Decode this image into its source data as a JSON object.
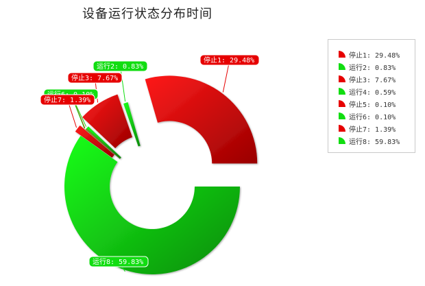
{
  "chart_data": {
    "type": "pie",
    "title": "设备运行状态分布时间",
    "legend_position": "right",
    "slices": [
      {
        "name": "停止1",
        "label": "停止1: 29.48%",
        "value": 29.48,
        "status": "stop"
      },
      {
        "name": "运行2",
        "label": "运行2: 0.83%",
        "value": 0.83,
        "status": "run"
      },
      {
        "name": "停止3",
        "label": "停止3: 7.67%",
        "value": 7.67,
        "status": "stop"
      },
      {
        "name": "运行4",
        "label": "运行4: 0.59%",
        "value": 0.59,
        "status": "run"
      },
      {
        "name": "停止5",
        "label": "停止5: 0.10%",
        "value": 0.1,
        "status": "stop"
      },
      {
        "name": "运行6",
        "label": "运行6: 0.10%",
        "value": 0.1,
        "status": "run"
      },
      {
        "name": "停止7",
        "label": "停止7: 1.39%",
        "value": 1.39,
        "status": "stop"
      },
      {
        "name": "运行8",
        "label": "运行8: 59.83%",
        "value": 59.83,
        "status": "run"
      }
    ],
    "colors": {
      "stop": "#e60000",
      "stop_dark": "#9e0000",
      "run": "#11dd11",
      "run_dark": "#0b8f0b"
    }
  }
}
